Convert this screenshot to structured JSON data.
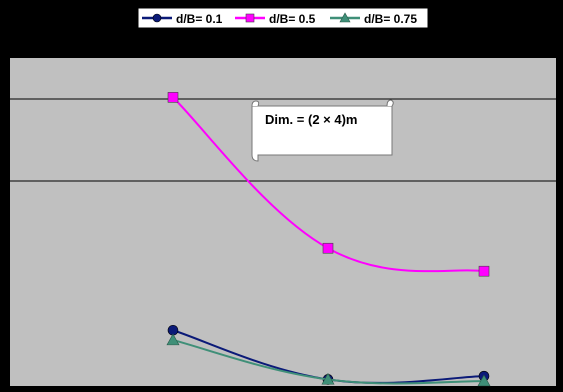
{
  "chart_data": {
    "type": "line",
    "x": [
      1,
      2,
      3
    ],
    "title": "",
    "xlabel": "",
    "ylabel": "",
    "ylim": [
      0,
      1
    ],
    "grid": true,
    "legend_position": "top",
    "series": [
      {
        "name": "d/B= 0.1",
        "values": [
          0.17,
          0.02,
          0.03
        ],
        "color": "#0b1a78",
        "marker": "circle"
      },
      {
        "name": "d/B= 0.5",
        "values": [
          0.88,
          0.42,
          0.35
        ],
        "color": "#ff00ff",
        "marker": "square"
      },
      {
        "name": "d/B= 0.75",
        "values": [
          0.14,
          0.02,
          0.015
        ],
        "color": "#3f8f78",
        "marker": "triangle"
      }
    ],
    "annotation": "Dim. = (2 × 4)m",
    "plot_background": "#c0c0c0",
    "frame_color": "#000000"
  }
}
